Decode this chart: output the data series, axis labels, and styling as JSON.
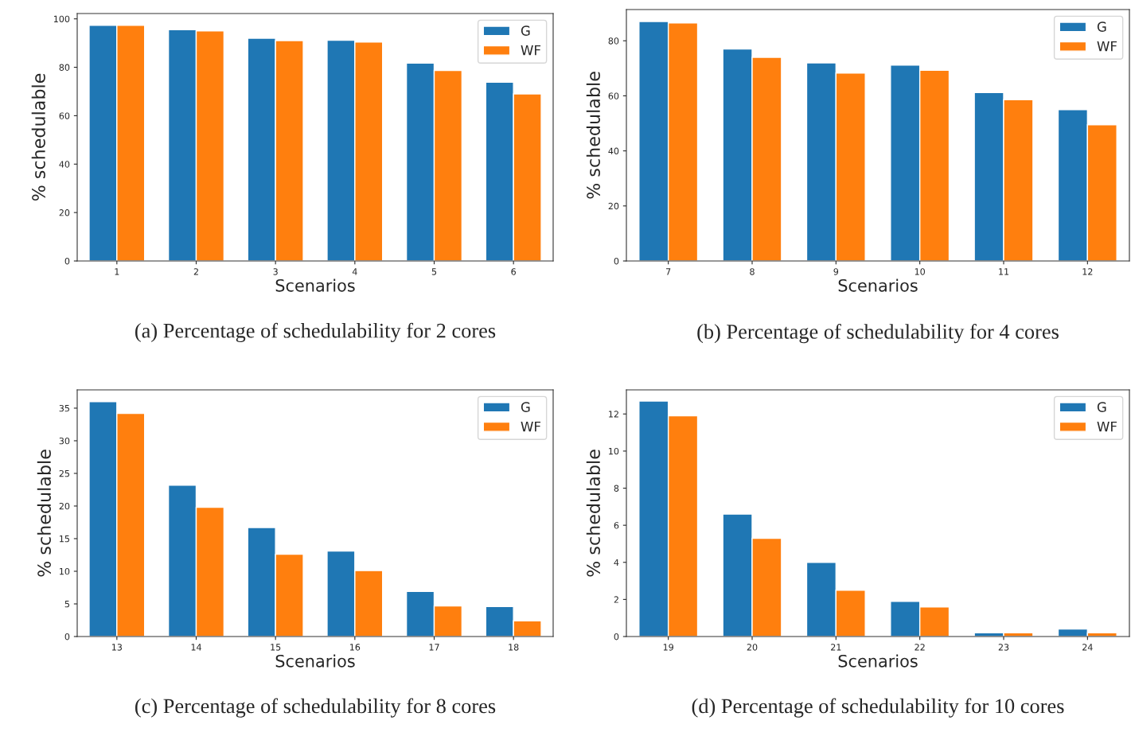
{
  "chart_data": [
    {
      "type": "bar",
      "title": "(a) Percentage of schedulability for 2 cores",
      "xlabel": "Scenarios",
      "ylabel": "% schedulable",
      "categories": [
        "1",
        "2",
        "3",
        "4",
        "5",
        "6"
      ],
      "ylim": [
        0,
        102.2
      ],
      "yticks": [
        0,
        20,
        40,
        60,
        80,
        100
      ],
      "legend": "top right",
      "grid": false,
      "series": [
        {
          "name": "G",
          "color": "#1f77b4",
          "values": [
            97.3,
            95.5,
            92,
            91.2,
            81.7,
            73.8
          ]
        },
        {
          "name": "WF",
          "color": "#ff7f0e",
          "values": [
            97.3,
            95,
            91,
            90.4,
            78.7,
            69
          ]
        }
      ]
    },
    {
      "type": "bar",
      "title": "(b) Percentage of schedulability for 4 cores",
      "xlabel": "Scenarios",
      "ylabel": "% schedulable",
      "categories": [
        "7",
        "8",
        "9",
        "10",
        "11",
        "12"
      ],
      "ylim": [
        0,
        91.35
      ],
      "yticks": [
        0,
        20,
        40,
        60,
        80
      ],
      "legend": "top right",
      "grid": false,
      "series": [
        {
          "name": "G",
          "color": "#1f77b4",
          "values": [
            87,
            77,
            72,
            71.2,
            61.2,
            55
          ]
        },
        {
          "name": "WF",
          "color": "#ff7f0e",
          "values": [
            86.5,
            74,
            68.3,
            69.3,
            58.6,
            49.5
          ]
        }
      ]
    },
    {
      "type": "bar",
      "title": "(c) Percentage of schedulability for 8 cores",
      "xlabel": "Scenarios",
      "ylabel": "% schedulable",
      "categories": [
        "13",
        "14",
        "15",
        "16",
        "17",
        "18"
      ],
      "ylim": [
        0,
        37.8
      ],
      "yticks": [
        0,
        5,
        10,
        15,
        20,
        25,
        30,
        35
      ],
      "legend": "top right",
      "grid": false,
      "series": [
        {
          "name": "G",
          "color": "#1f77b4",
          "values": [
            36,
            23.2,
            16.7,
            13.1,
            6.9,
            4.6
          ]
        },
        {
          "name": "WF",
          "color": "#ff7f0e",
          "values": [
            34.2,
            19.8,
            12.6,
            10.1,
            4.7,
            2.4
          ]
        }
      ]
    },
    {
      "type": "bar",
      "title": "(d) Percentage of schedulability for 10 cores",
      "xlabel": "Scenarios",
      "ylabel": "% schedulable",
      "categories": [
        "19",
        "20",
        "21",
        "22",
        "23",
        "24"
      ],
      "ylim": [
        0,
        13.3
      ],
      "yticks": [
        0,
        2,
        4,
        6,
        8,
        10,
        12
      ],
      "legend": "top right",
      "grid": false,
      "series": [
        {
          "name": "G",
          "color": "#1f77b4",
          "values": [
            12.7,
            6.6,
            4.0,
            1.9,
            0.2,
            0.4
          ]
        },
        {
          "name": "WF",
          "color": "#ff7f0e",
          "values": [
            11.9,
            5.3,
            2.5,
            1.6,
            0.2,
            0.2
          ]
        }
      ]
    }
  ]
}
